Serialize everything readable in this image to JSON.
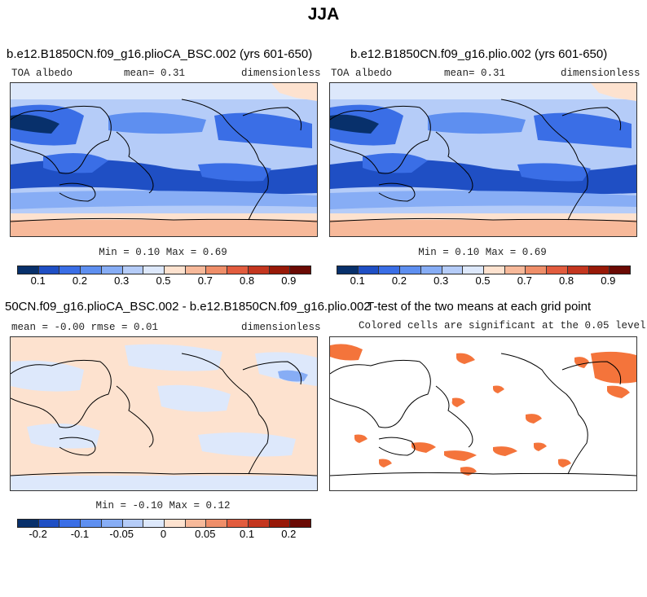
{
  "figure": {
    "season": "JJA"
  },
  "panels": {
    "top_left": {
      "title": "b.e12.B1850CN.f09_g16.plioCA_BSC.002 (yrs 601-650)",
      "variable": "TOA albedo",
      "stat": "mean=   0.31",
      "units": "dimensionless",
      "minmax": "Min =   0.10 Max =   0.69",
      "colorbar_ticks": [
        "0.1",
        "0.2",
        "0.3",
        "0.5",
        "0.7",
        "0.8",
        "0.9"
      ]
    },
    "top_right": {
      "title": "b.e12.B1850CN.f09_g16.plio.002 (yrs 601-650)",
      "variable": "TOA albedo",
      "stat": "mean=   0.31",
      "units": "dimensionless",
      "minmax": "Min =   0.10 Max =   0.69",
      "colorbar_ticks": [
        "0.1",
        "0.2",
        "0.3",
        "0.5",
        "0.7",
        "0.8",
        "0.9"
      ]
    },
    "bottom_left": {
      "title": "50CN.f09_g16.plioCA_BSC.002 - b.e12.B1850CN.f09_g16.plio.002",
      "stat": "mean =  -0.00   rmse =   0.01",
      "units": "dimensionless",
      "minmax": "Min =  -0.10 Max =   0.12",
      "colorbar_ticks": [
        "-0.2",
        "-0.1",
        "-0.05",
        "0",
        "0.05",
        "0.1",
        "0.2"
      ]
    },
    "bottom_right": {
      "title": "T-test of the two means at each grid point",
      "subtitle": "Colored cells are significant at the 0.05 level"
    }
  },
  "colors": {
    "abs_scale": [
      "#08306b",
      "#1f4fc4",
      "#3a6ee6",
      "#5e8ff0",
      "#87adf5",
      "#b5ccf8",
      "#dde8fb",
      "#fde2cf",
      "#f7b99a",
      "#ef8e69",
      "#e25c3e",
      "#c4361f",
      "#981908",
      "#6b0a04"
    ],
    "diff_scale": [
      "#08306b",
      "#1f4fc4",
      "#3a6ee6",
      "#5e8ff0",
      "#87adf5",
      "#b5ccf8",
      "#dde8fb",
      "#fde2cf",
      "#f7b99a",
      "#ef8e69",
      "#e25c3e",
      "#c4361f",
      "#981908",
      "#6b0a04"
    ],
    "significant": "#f4743b"
  }
}
